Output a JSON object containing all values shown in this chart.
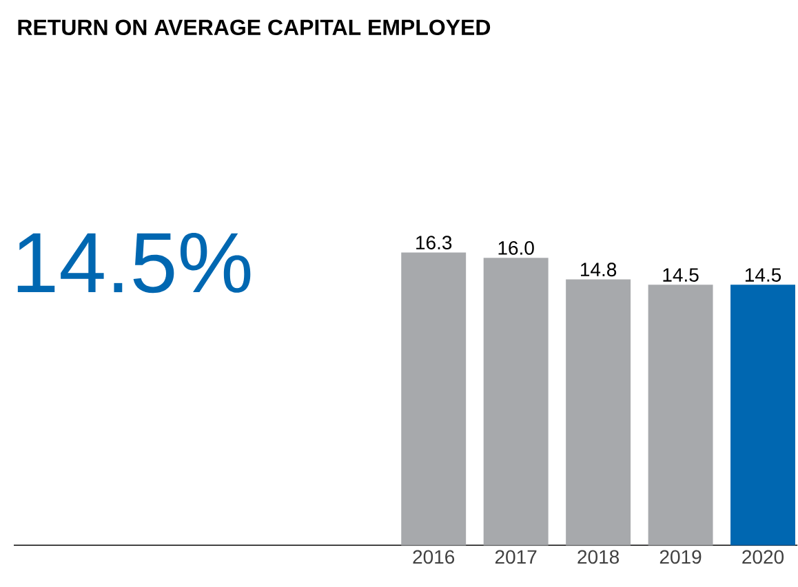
{
  "chart_data": {
    "type": "bar",
    "title": "RETURN ON AVERAGE CAPITAL EMPLOYED",
    "annotations": [
      "14.5%"
    ],
    "categories": [
      "2016",
      "2017",
      "2018",
      "2019",
      "2020"
    ],
    "values": [
      16.3,
      16.0,
      14.8,
      14.5,
      14.5
    ],
    "value_labels": [
      "16.3",
      "16.0",
      "14.8",
      "14.5",
      "14.5"
    ],
    "colors": [
      "#a7a9ac",
      "#a7a9ac",
      "#a7a9ac",
      "#a7a9ac",
      "#0067b1"
    ]
  }
}
